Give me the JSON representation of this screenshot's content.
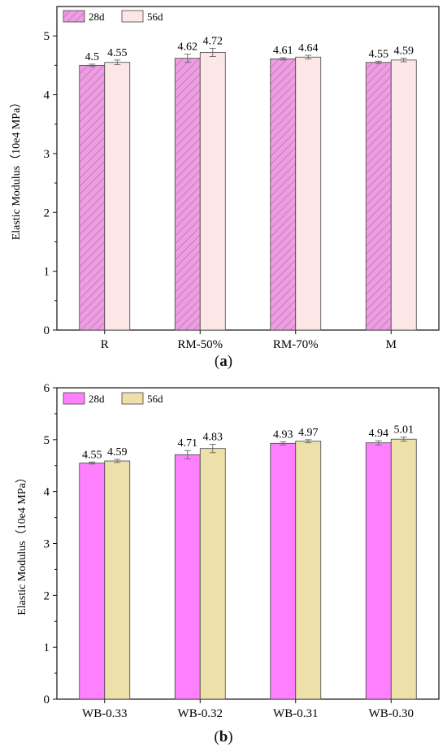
{
  "panels": [
    {
      "caption": {
        "open": "(",
        "letter": "a",
        "close": ")"
      },
      "chart_data": {
        "type": "bar",
        "categories": [
          "R",
          "RM-50%",
          "RM-70%",
          "M"
        ],
        "series": [
          {
            "name": "28d",
            "values": [
              4.5,
              4.62,
              4.61,
              4.55
            ],
            "labels": [
              "4.5",
              "4.62",
              "4.61",
              "4.55"
            ],
            "errors": [
              0.02,
              0.07,
              0.02,
              0.02
            ],
            "color": "#ec9ee0",
            "pattern": "hatch"
          },
          {
            "name": "56d",
            "values": [
              4.55,
              4.72,
              4.64,
              4.59
            ],
            "labels": [
              "4.55",
              "4.72",
              "4.64",
              "4.59"
            ],
            "errors": [
              0.04,
              0.07,
              0.03,
              0.03
            ],
            "color": "#fde6e6",
            "pattern": "solid"
          }
        ],
        "title": "",
        "xlabel": "",
        "ylabel": "Elastic Modulus（10e4 MPa）",
        "ylim": [
          0,
          5.5
        ],
        "yticks": [
          0,
          1,
          2,
          3,
          4,
          5
        ],
        "grid": false,
        "legend": "top-left"
      }
    },
    {
      "caption": {
        "open": "(",
        "letter": "b",
        "close": ")"
      },
      "chart_data": {
        "type": "bar",
        "categories": [
          "WB-0.33",
          "WB-0.32",
          "WB-0.31",
          "WB-0.30"
        ],
        "series": [
          {
            "name": "28d",
            "values": [
              4.55,
              4.71,
              4.93,
              4.94
            ],
            "labels": [
              "4.55",
              "4.71",
              "4.93",
              "4.94"
            ],
            "errors": [
              0.02,
              0.08,
              0.03,
              0.04
            ],
            "color": "#ff80ff",
            "pattern": "solid"
          },
          {
            "name": "56d",
            "values": [
              4.59,
              4.83,
              4.97,
              5.01
            ],
            "labels": [
              "4.59",
              "4.83",
              "4.97",
              "5.01"
            ],
            "errors": [
              0.03,
              0.08,
              0.03,
              0.04
            ],
            "color": "#ede0a8",
            "pattern": "solid"
          }
        ],
        "title": "",
        "xlabel": "",
        "ylabel": "Elastic Modulus（10e4 MPa）",
        "ylim": [
          0,
          6
        ],
        "yticks": [
          0,
          1,
          2,
          3,
          4,
          5,
          6
        ],
        "grid": false,
        "legend": "top-left"
      }
    }
  ]
}
